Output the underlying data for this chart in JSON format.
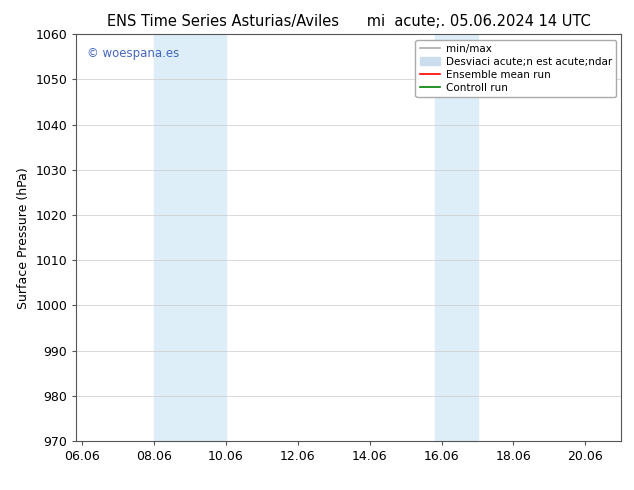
{
  "title_left": "ENS Time Series Asturias/Aviles",
  "title_right": "mi  acute;. 05.06.2024 14 UTC",
  "ylabel": "Surface Pressure (hPa)",
  "ylim": [
    970,
    1060
  ],
  "yticks": [
    970,
    980,
    990,
    1000,
    1010,
    1020,
    1030,
    1040,
    1050,
    1060
  ],
  "xlim_start": 5.83,
  "xlim_end": 21.0,
  "xtick_labels": [
    "06.06",
    "08.06",
    "10.06",
    "12.06",
    "14.06",
    "16.06",
    "18.06",
    "20.06"
  ],
  "xtick_positions": [
    6.0,
    8.0,
    10.0,
    12.0,
    14.0,
    16.0,
    18.0,
    20.0
  ],
  "shading_regions": [
    {
      "x_start": 8.0,
      "x_end": 10.0
    },
    {
      "x_start": 15.83,
      "x_end": 17.0
    }
  ],
  "shading_color": "#ddeef8",
  "watermark_text": "© woespana.es",
  "watermark_color": "#4466bb",
  "legend_line1_label": "min/max",
  "legend_line1_color": "#aaaaaa",
  "legend_line2_label": "Desviaci acute;n est acute;ndar",
  "legend_line2_color": "#ccddee",
  "legend_line3_label": "Ensemble mean run",
  "legend_line3_color": "red",
  "legend_line4_label": "Controll run",
  "legend_line4_color": "green",
  "bg_color": "#ffffff",
  "grid_color": "#cccccc",
  "font_size_title": 10.5,
  "font_size_axis_label": 9,
  "font_size_tick": 9,
  "font_size_legend": 7.5,
  "font_size_watermark": 8.5
}
